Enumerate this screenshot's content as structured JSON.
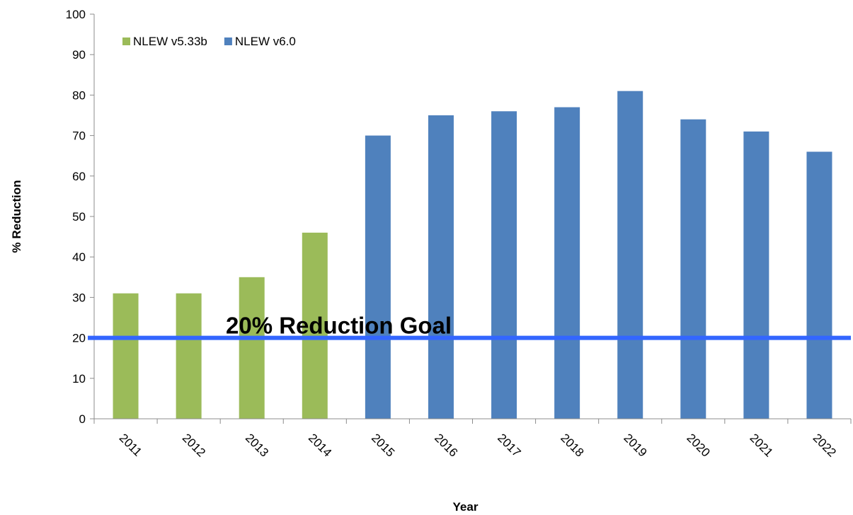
{
  "chart_data": {
    "type": "bar",
    "title": "",
    "xlabel": "Year",
    "ylabel": "% Reduction",
    "ylim": [
      0,
      100
    ],
    "yticks": [
      0,
      10,
      20,
      30,
      40,
      50,
      60,
      70,
      80,
      90,
      100
    ],
    "categories": [
      "2011",
      "2012",
      "2013",
      "2014",
      "2015",
      "2016",
      "2017",
      "2018",
      "2019",
      "2020",
      "2021",
      "2022"
    ],
    "series": [
      {
        "name": "NLEW v5.33b",
        "color": "#9BBB59",
        "values": [
          31,
          31,
          35,
          46,
          null,
          null,
          null,
          null,
          null,
          null,
          null,
          null
        ]
      },
      {
        "name": "NLEW v6.0",
        "color": "#4F81BD",
        "values": [
          null,
          null,
          null,
          null,
          70,
          75,
          76,
          77,
          81,
          74,
          71,
          66
        ]
      }
    ],
    "reference_line": {
      "label": "20% Reduction Goal",
      "value": 20,
      "color": "#3366FF"
    },
    "legend_position": "top-left",
    "grid": false
  }
}
